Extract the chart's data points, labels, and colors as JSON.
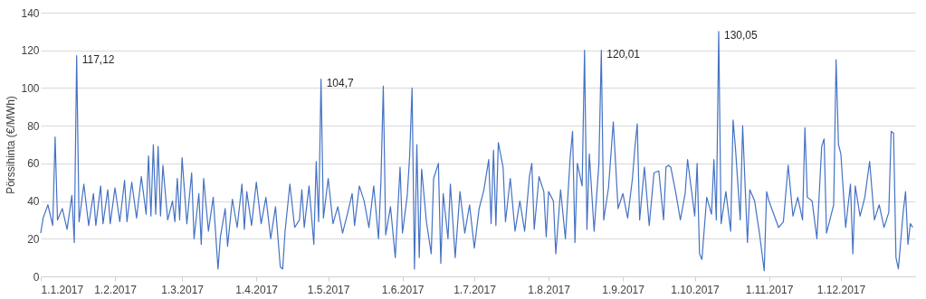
{
  "chart_data": {
    "type": "line",
    "ylabel": "Pörssihinta (€/MWh)",
    "x": [
      "2017-01-01",
      "2017-01-02",
      "2017-01-04",
      "2017-01-06",
      "2017-01-07",
      "2017-01-08",
      "2017-01-10",
      "2017-01-12",
      "2017-01-14",
      "2017-01-15",
      "2017-01-16",
      "2017-01-17",
      "2017-01-19",
      "2017-01-21",
      "2017-01-23",
      "2017-01-24",
      "2017-01-26",
      "2017-01-27",
      "2017-01-29",
      "2017-01-30",
      "2017-02-01",
      "2017-02-03",
      "2017-02-05",
      "2017-02-06",
      "2017-02-08",
      "2017-02-10",
      "2017-02-12",
      "2017-02-14",
      "2017-02-15",
      "2017-02-16",
      "2017-02-17",
      "2017-02-18",
      "2017-02-19",
      "2017-02-20",
      "2017-02-21",
      "2017-02-23",
      "2017-02-25",
      "2017-02-26",
      "2017-02-27",
      "2017-02-28",
      "2017-03-01",
      "2017-03-03",
      "2017-03-05",
      "2017-03-06",
      "2017-03-08",
      "2017-03-09",
      "2017-03-10",
      "2017-03-12",
      "2017-03-14",
      "2017-03-16",
      "2017-03-17",
      "2017-03-19",
      "2017-03-20",
      "2017-03-22",
      "2017-03-24",
      "2017-03-26",
      "2017-03-27",
      "2017-03-28",
      "2017-03-30",
      "2017-04-01",
      "2017-04-03",
      "2017-04-05",
      "2017-04-07",
      "2017-04-09",
      "2017-04-11",
      "2017-04-12",
      "2017-04-13",
      "2017-04-15",
      "2017-04-17",
      "2017-04-19",
      "2017-04-20",
      "2017-04-21",
      "2017-04-23",
      "2017-04-25",
      "2017-04-26",
      "2017-04-27",
      "2017-04-28",
      "2017-04-29",
      "2017-05-01",
      "2017-05-03",
      "2017-05-05",
      "2017-05-07",
      "2017-05-09",
      "2017-05-11",
      "2017-05-12",
      "2017-05-14",
      "2017-05-16",
      "2017-05-18",
      "2017-05-20",
      "2017-05-22",
      "2017-05-23",
      "2017-05-24",
      "2017-05-25",
      "2017-05-27",
      "2017-05-29",
      "2017-05-31",
      "2017-06-01",
      "2017-06-03",
      "2017-06-04",
      "2017-06-05",
      "2017-06-06",
      "2017-06-07",
      "2017-06-08",
      "2017-06-09",
      "2017-06-11",
      "2017-06-13",
      "2017-06-14",
      "2017-06-16",
      "2017-06-17",
      "2017-06-18",
      "2017-06-20",
      "2017-06-21",
      "2017-06-23",
      "2017-06-25",
      "2017-06-27",
      "2017-06-29",
      "2017-07-01",
      "2017-07-03",
      "2017-07-05",
      "2017-07-07",
      "2017-07-08",
      "2017-07-09",
      "2017-07-10",
      "2017-07-11",
      "2017-07-13",
      "2017-07-14",
      "2017-07-16",
      "2017-07-18",
      "2017-07-20",
      "2017-07-22",
      "2017-07-24",
      "2017-07-25",
      "2017-07-26",
      "2017-07-28",
      "2017-07-30",
      "2017-07-31",
      "2017-08-01",
      "2017-08-03",
      "2017-08-04",
      "2017-08-06",
      "2017-08-08",
      "2017-08-10",
      "2017-08-11",
      "2017-08-12",
      "2017-08-13",
      "2017-08-15",
      "2017-08-16",
      "2017-08-17",
      "2017-08-18",
      "2017-08-20",
      "2017-08-22",
      "2017-08-23",
      "2017-08-24",
      "2017-08-26",
      "2017-08-28",
      "2017-08-30",
      "2017-09-01",
      "2017-09-03",
      "2017-09-05",
      "2017-09-06",
      "2017-09-07",
      "2017-09-08",
      "2017-09-10",
      "2017-09-12",
      "2017-09-14",
      "2017-09-16",
      "2017-09-18",
      "2017-09-19",
      "2017-09-20",
      "2017-09-21",
      "2017-09-23",
      "2017-09-25",
      "2017-09-27",
      "2017-09-28",
      "2017-10-01",
      "2017-10-02",
      "2017-10-03",
      "2017-10-04",
      "2017-10-06",
      "2017-10-08",
      "2017-10-09",
      "2017-10-10",
      "2017-10-11",
      "2017-10-12",
      "2017-10-14",
      "2017-10-16",
      "2017-10-17",
      "2017-10-18",
      "2017-10-20",
      "2017-10-21",
      "2017-10-23",
      "2017-10-24",
      "2017-10-26",
      "2017-10-28",
      "2017-10-30",
      "2017-10-31",
      "2017-11-01",
      "2017-11-03",
      "2017-11-05",
      "2017-11-07",
      "2017-11-09",
      "2017-11-11",
      "2017-11-13",
      "2017-11-15",
      "2017-11-16",
      "2017-11-17",
      "2017-11-19",
      "2017-11-21",
      "2017-11-23",
      "2017-11-24",
      "2017-11-25",
      "2017-11-27",
      "2017-11-28",
      "2017-11-29",
      "2017-11-30",
      "2017-12-01",
      "2017-12-03",
      "2017-12-05",
      "2017-12-06",
      "2017-12-07",
      "2017-12-09",
      "2017-12-11",
      "2017-12-13",
      "2017-12-15",
      "2017-12-17",
      "2017-12-19",
      "2017-12-21",
      "2017-12-22",
      "2017-12-23",
      "2017-12-24",
      "2017-12-25",
      "2017-12-27",
      "2017-12-28",
      "2017-12-29",
      "2017-12-30",
      "2017-12-31"
    ],
    "series": [
      {
        "color": "#4472c4",
        "values": [
          23,
          31,
          38,
          27,
          74,
          30,
          36,
          25,
          43,
          18,
          117.12,
          29,
          49,
          27,
          44,
          27,
          48,
          28,
          46,
          28,
          47,
          29,
          51,
          29,
          50,
          31,
          53,
          33,
          64,
          32,
          70,
          33,
          69,
          32,
          59,
          30,
          40,
          29,
          52,
          30,
          63,
          28,
          55,
          20,
          44,
          17,
          52,
          24,
          42,
          4,
          21,
          36,
          16,
          41,
          26,
          49,
          25,
          45,
          27,
          50,
          28,
          42,
          20,
          37,
          5,
          4,
          24,
          49,
          26,
          30,
          46,
          26,
          48,
          17,
          61,
          29,
          104.7,
          31,
          52,
          28,
          37,
          23,
          33,
          44,
          27,
          48,
          40,
          26,
          48,
          20,
          50,
          101,
          22,
          37,
          10,
          58,
          23,
          43,
          64,
          100,
          4,
          70,
          10,
          57,
          29,
          12,
          52,
          60,
          7,
          44,
          20,
          49,
          10,
          45,
          23,
          38,
          15,
          36,
          46,
          62,
          28,
          67,
          27,
          71,
          58,
          29,
          52,
          24,
          40,
          24,
          53,
          60,
          25,
          53,
          45,
          21,
          45,
          40,
          12,
          46,
          20,
          63,
          77,
          18,
          60,
          48,
          120,
          25,
          65,
          24,
          60,
          120.01,
          30,
          47,
          82,
          36,
          44,
          31,
          52,
          68,
          81,
          30,
          58,
          27,
          55,
          56,
          30,
          58,
          59,
          58,
          45,
          30,
          44,
          62,
          32,
          60,
          12,
          9,
          42,
          33,
          62,
          30,
          130.05,
          28,
          45,
          24,
          83,
          68,
          30,
          80,
          18,
          46,
          40,
          23,
          3,
          45,
          40,
          33,
          26,
          29,
          59,
          32,
          42,
          30,
          79,
          42,
          40,
          20,
          69,
          73,
          23,
          33,
          38,
          115,
          70,
          65,
          26,
          49,
          12,
          48,
          32,
          42,
          61,
          30,
          38,
          26,
          34,
          77,
          76,
          10,
          4,
          34,
          45,
          17,
          28,
          26
        ]
      }
    ],
    "xlim": [
      "2017-01-01",
      "2018-01-01"
    ],
    "xticks": [
      {
        "value": "2017-01-01",
        "label": "1.1.2017"
      },
      {
        "value": "2017-02-01",
        "label": "1.2.2017"
      },
      {
        "value": "2017-03-01",
        "label": "1.3.2017"
      },
      {
        "value": "2017-04-01",
        "label": "1.4.2017"
      },
      {
        "value": "2017-05-01",
        "label": "1.5.2017"
      },
      {
        "value": "2017-06-01",
        "label": "1.6.2017"
      },
      {
        "value": "2017-07-01",
        "label": "1.7.2017"
      },
      {
        "value": "2017-08-01",
        "label": "1.8.2017"
      },
      {
        "value": "2017-09-01",
        "label": "1.9.2017"
      },
      {
        "value": "2017-10-01",
        "label": "1.10.2017"
      },
      {
        "value": "2017-11-01",
        "label": "1.11.2017"
      },
      {
        "value": "2017-12-01",
        "label": "1.12.2017"
      }
    ],
    "ylim": [
      0,
      140
    ],
    "yticks": [
      0,
      20,
      40,
      60,
      80,
      100,
      120,
      140
    ],
    "grid": "y",
    "legend": false,
    "marker": "none",
    "line_style": "solid",
    "annotations": [
      {
        "text": "117,12",
        "x": "2017-01-16",
        "y": 117.12
      },
      {
        "text": "104,7",
        "x": "2017-04-28",
        "y": 104.7
      },
      {
        "text": "120,01",
        "x": "2017-08-23",
        "y": 120.01
      },
      {
        "text": "130,05",
        "x": "2017-10-11",
        "y": 130.05
      }
    ]
  }
}
